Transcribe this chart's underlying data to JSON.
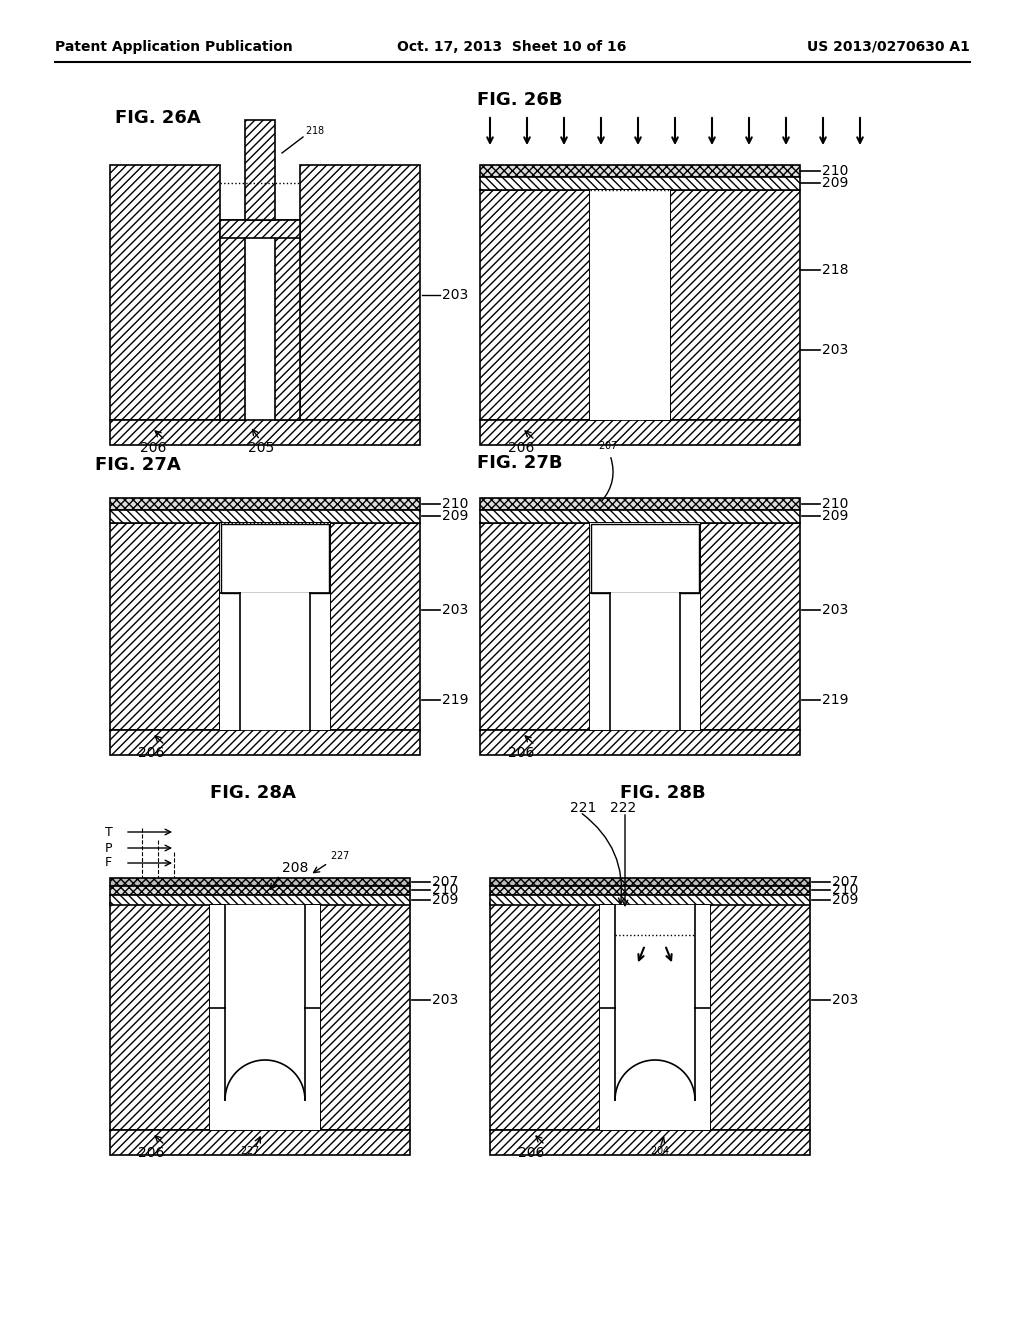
{
  "header_left": "Patent Application Publication",
  "header_mid": "Oct. 17, 2013  Sheet 10 of 16",
  "header_right": "US 2013/0270630 A1",
  "bg_color": "#ffffff"
}
